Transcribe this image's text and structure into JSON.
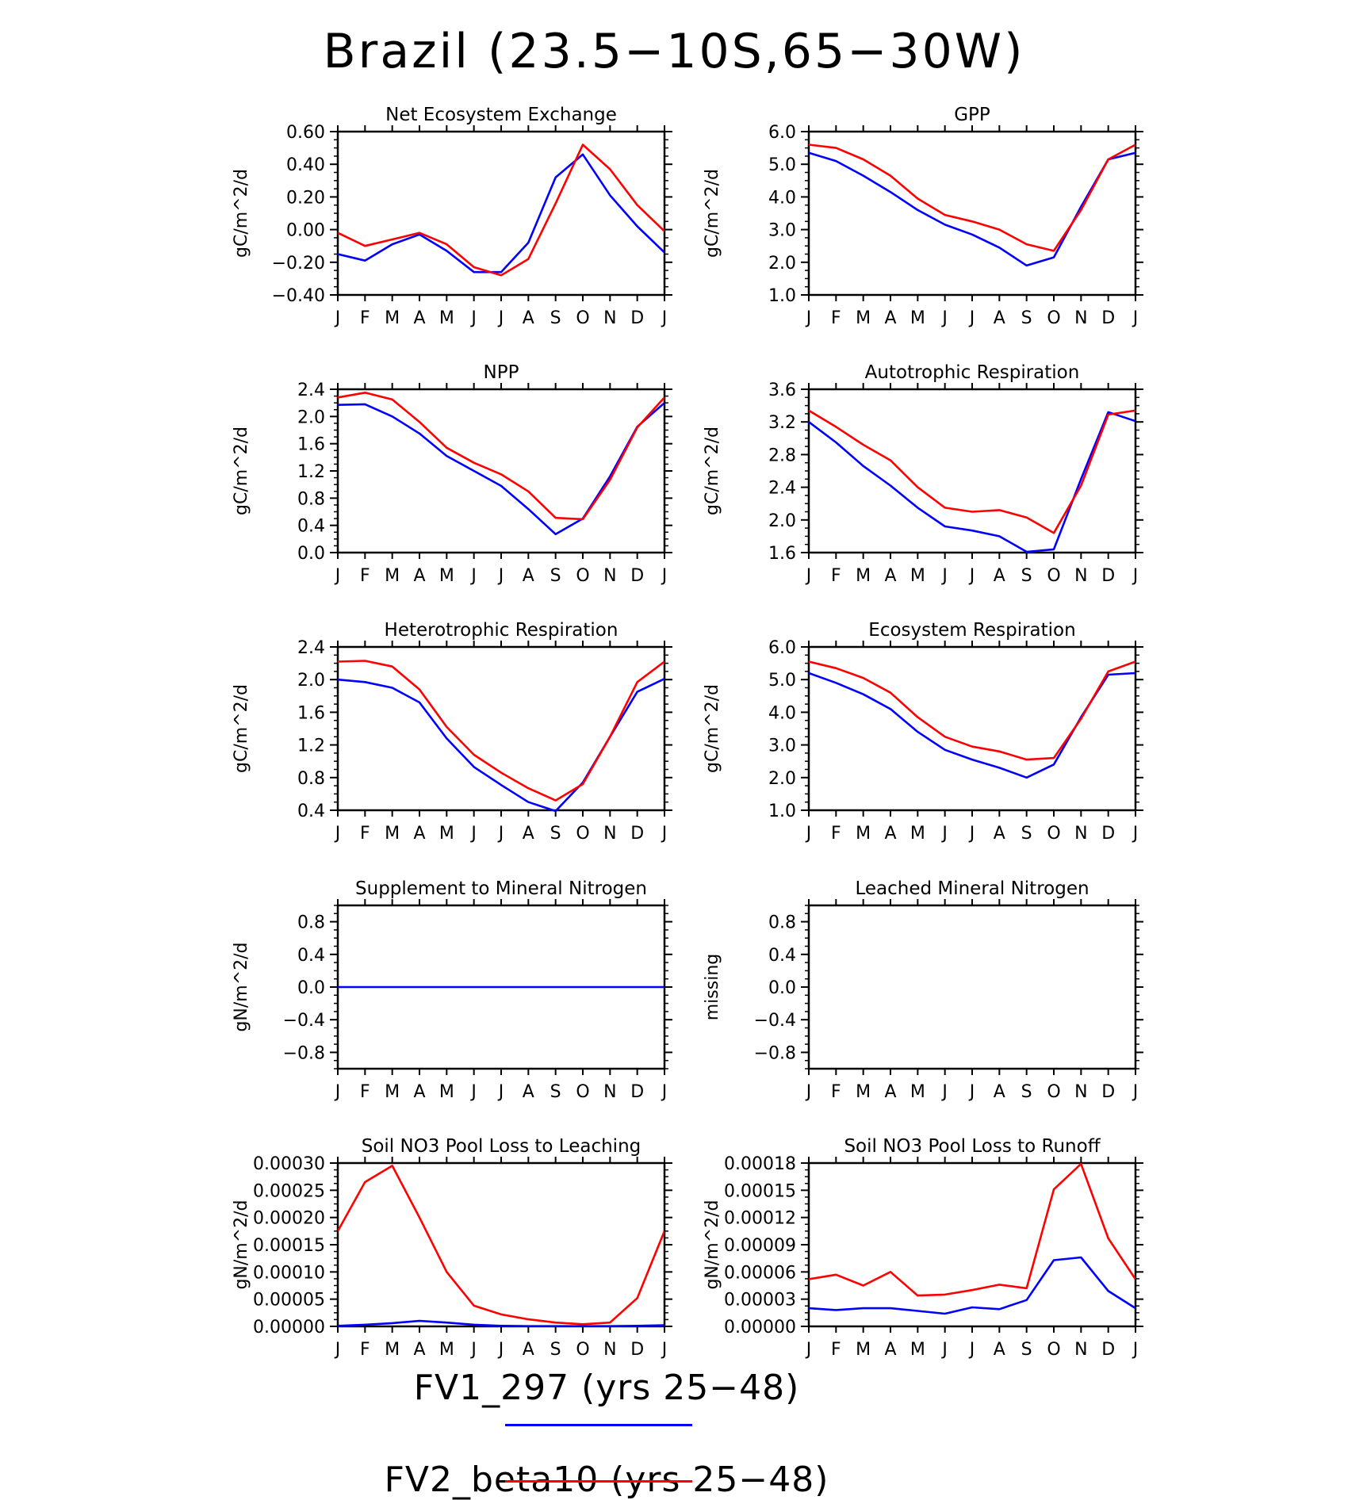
{
  "figure": {
    "title": "Brazil (23.5−10S,65−30W)"
  },
  "months": [
    "J",
    "F",
    "M",
    "A",
    "M",
    "J",
    "J",
    "A",
    "S",
    "O",
    "N",
    "D",
    "J"
  ],
  "legend": [
    {
      "label": "FV1_297 (yrs 25−48)",
      "color": "#0000ff"
    },
    {
      "label": "FV2_beta10 (yrs 25−48)",
      "color": "#ff0000"
    }
  ],
  "chart_data": [
    {
      "type": "line",
      "title": "Net Ecosystem Exchange",
      "ylabel": "gC/m^2/d",
      "ylim": [
        -0.4,
        0.6
      ],
      "yticks": [
        "0.60",
        "0.40",
        "0.20",
        "0.00",
        "−0.20",
        "−0.40"
      ],
      "ytick_values": [
        0.6,
        0.4,
        0.2,
        0.0,
        -0.2,
        -0.4
      ],
      "series": [
        {
          "color": "#0000ff",
          "values": [
            -0.15,
            -0.19,
            -0.09,
            -0.03,
            -0.13,
            -0.26,
            -0.26,
            -0.08,
            0.32,
            0.46,
            0.21,
            0.02,
            -0.14
          ]
        },
        {
          "color": "#ff0000",
          "values": [
            -0.02,
            -0.1,
            -0.06,
            -0.02,
            -0.09,
            -0.23,
            -0.28,
            -0.18,
            0.16,
            0.52,
            0.37,
            0.15,
            -0.01
          ]
        }
      ]
    },
    {
      "type": "line",
      "title": "GPP",
      "ylabel": "gC/m^2/d",
      "ylim": [
        1.0,
        6.0
      ],
      "yticks": [
        "6.0",
        "5.0",
        "4.0",
        "3.0",
        "2.0",
        "1.0"
      ],
      "ytick_values": [
        6,
        5,
        4,
        3,
        2,
        1
      ],
      "series": [
        {
          "color": "#0000ff",
          "values": [
            5.35,
            5.1,
            4.65,
            4.15,
            3.6,
            3.15,
            2.85,
            2.45,
            1.9,
            2.15,
            3.7,
            5.15,
            5.35
          ]
        },
        {
          "color": "#ff0000",
          "values": [
            5.6,
            5.5,
            5.15,
            4.65,
            3.95,
            3.45,
            3.25,
            3.0,
            2.55,
            2.35,
            3.6,
            5.15,
            5.6
          ]
        }
      ]
    },
    {
      "type": "line",
      "title": "NPP",
      "ylabel": "gC/m^2/d",
      "ylim": [
        0.0,
        2.4
      ],
      "yticks": [
        "2.4",
        "2.0",
        "1.6",
        "1.2",
        "0.8",
        "0.4",
        "0.0"
      ],
      "ytick_values": [
        2.4,
        2.0,
        1.6,
        1.2,
        0.8,
        0.4,
        0.0
      ],
      "series": [
        {
          "color": "#0000ff",
          "values": [
            2.17,
            2.18,
            2.0,
            1.75,
            1.42,
            1.2,
            0.98,
            0.64,
            0.27,
            0.5,
            1.12,
            1.85,
            2.2
          ]
        },
        {
          "color": "#ff0000",
          "values": [
            2.28,
            2.35,
            2.25,
            1.92,
            1.54,
            1.32,
            1.15,
            0.9,
            0.51,
            0.49,
            1.07,
            1.84,
            2.28
          ]
        }
      ]
    },
    {
      "type": "line",
      "title": "Autotrophic Respiration",
      "ylabel": "gC/m^2/d",
      "ylim": [
        1.6,
        3.6
      ],
      "yticks": [
        "3.6",
        "3.2",
        "2.8",
        "2.4",
        "2.0",
        "1.6"
      ],
      "ytick_values": [
        3.6,
        3.2,
        2.8,
        2.4,
        2.0,
        1.6
      ],
      "series": [
        {
          "color": "#0000ff",
          "values": [
            3.2,
            2.95,
            2.66,
            2.42,
            2.15,
            1.92,
            1.87,
            1.8,
            1.61,
            1.64,
            2.5,
            3.32,
            3.21
          ]
        },
        {
          "color": "#ff0000",
          "values": [
            3.34,
            3.14,
            2.92,
            2.73,
            2.4,
            2.15,
            2.1,
            2.12,
            2.03,
            1.84,
            2.42,
            3.29,
            3.34
          ]
        }
      ]
    },
    {
      "type": "line",
      "title": "Heterotrophic Respiration",
      "ylabel": "gC/m^2/d",
      "ylim": [
        0.4,
        2.4
      ],
      "yticks": [
        "2.4",
        "2.0",
        "1.6",
        "1.2",
        "0.8",
        "0.4"
      ],
      "ytick_values": [
        2.4,
        2.0,
        1.6,
        1.2,
        0.8,
        0.4
      ],
      "series": [
        {
          "color": "#0000ff",
          "values": [
            2.0,
            1.97,
            1.9,
            1.72,
            1.28,
            0.93,
            0.71,
            0.5,
            0.39,
            0.74,
            1.3,
            1.85,
            2.01
          ]
        },
        {
          "color": "#ff0000",
          "values": [
            2.22,
            2.23,
            2.16,
            1.88,
            1.42,
            1.08,
            0.86,
            0.67,
            0.52,
            0.72,
            1.3,
            1.97,
            2.22
          ]
        }
      ]
    },
    {
      "type": "line",
      "title": "Ecosystem Respiration",
      "ylabel": "gC/m^2/d",
      "ylim": [
        1.0,
        6.0
      ],
      "yticks": [
        "6.0",
        "5.0",
        "4.0",
        "3.0",
        "2.0",
        "1.0"
      ],
      "ytick_values": [
        6,
        5,
        4,
        3,
        2,
        1
      ],
      "series": [
        {
          "color": "#0000ff",
          "values": [
            5.2,
            4.9,
            4.55,
            4.1,
            3.4,
            2.85,
            2.55,
            2.3,
            2.0,
            2.4,
            3.85,
            5.15,
            5.2
          ]
        },
        {
          "color": "#ff0000",
          "values": [
            5.55,
            5.35,
            5.05,
            4.6,
            3.85,
            3.25,
            2.95,
            2.8,
            2.55,
            2.6,
            3.8,
            5.25,
            5.55
          ]
        }
      ]
    },
    {
      "type": "line",
      "title": "Supplement to Mineral Nitrogen",
      "ylabel": "gN/m^2/d",
      "ylim": [
        -1.0,
        1.0
      ],
      "yticks": [
        "0.8",
        "0.4",
        "0.0",
        "−0.4",
        "−0.8"
      ],
      "ytick_values": [
        0.8,
        0.4,
        0.0,
        -0.4,
        -0.8
      ],
      "series": [
        {
          "color": "#0000ff",
          "values": [
            0,
            0,
            0,
            0,
            0,
            0,
            0,
            0,
            0,
            0,
            0,
            0,
            0
          ]
        }
      ]
    },
    {
      "type": "line",
      "title": "Leached Mineral Nitrogen",
      "ylabel": "missing",
      "ylim": [
        -1.0,
        1.0
      ],
      "yticks": [
        "0.8",
        "0.4",
        "0.0",
        "−0.4",
        "−0.8"
      ],
      "ytick_values": [
        0.8,
        0.4,
        0.0,
        -0.4,
        -0.8
      ],
      "series": []
    },
    {
      "type": "line",
      "title": "Soil NO3 Pool Loss to Leaching",
      "ylabel": "gN/m^2/d",
      "ylim": [
        0.0,
        0.0003
      ],
      "yticks": [
        "0.00030",
        "0.00025",
        "0.00020",
        "0.00015",
        "0.00010",
        "0.00005",
        "0.00000"
      ],
      "ytick_values": [
        0.0003,
        0.00025,
        0.0002,
        0.00015,
        0.0001,
        5e-05,
        0.0
      ],
      "series": [
        {
          "color": "#0000ff",
          "values": [
            1e-06,
            3e-06,
            6e-06,
            1e-05,
            7e-06,
            3e-06,
            1e-06,
            5e-07,
            5e-07,
            5e-07,
            5e-07,
            1e-06,
            2e-06
          ]
        },
        {
          "color": "#ff0000",
          "values": [
            0.000175,
            0.000265,
            0.000295,
            0.0002,
            0.0001,
            3.8e-05,
            2.2e-05,
            1.3e-05,
            7e-06,
            4e-06,
            7e-06,
            5.2e-05,
            0.000175
          ]
        }
      ]
    },
    {
      "type": "line",
      "title": "Soil NO3 Pool Loss to Runoff",
      "ylabel": "gN/m^2/d",
      "ylim": [
        0.0,
        0.00018
      ],
      "yticks": [
        "0.00018",
        "0.00015",
        "0.00012",
        "0.00009",
        "0.00006",
        "0.00003",
        "0.00000"
      ],
      "ytick_values": [
        0.00018,
        0.00015,
        0.00012,
        9e-05,
        6e-05,
        3e-05,
        0.0
      ],
      "series": [
        {
          "color": "#0000ff",
          "values": [
            2e-05,
            1.8e-05,
            2e-05,
            2e-05,
            1.7e-05,
            1.4e-05,
            2.1e-05,
            1.9e-05,
            2.9e-05,
            7.3e-05,
            7.6e-05,
            3.9e-05,
            2e-05
          ]
        },
        {
          "color": "#ff0000",
          "values": [
            5.2e-05,
            5.7e-05,
            4.5e-05,
            6e-05,
            3.4e-05,
            3.5e-05,
            4e-05,
            4.6e-05,
            4.2e-05,
            0.000151,
            0.000179,
            9.7e-05,
            5.2e-05
          ]
        }
      ]
    }
  ]
}
